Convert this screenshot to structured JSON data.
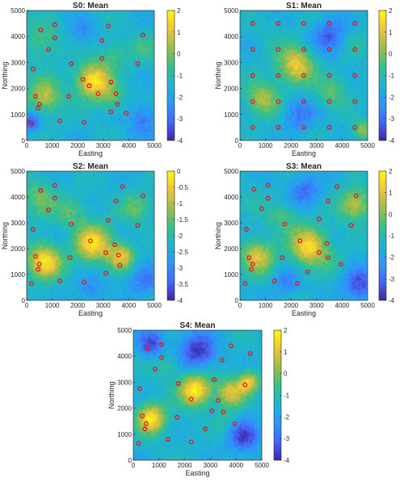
{
  "figure": {
    "panel_count": 5
  },
  "chart_data": [
    {
      "type": "heatmap",
      "title": "S0: Mean",
      "xlabel": "Easting",
      "ylabel": "Northing",
      "xlim": [
        0,
        5000
      ],
      "ylim": [
        0,
        5000
      ],
      "xticks": [
        "0",
        "1000",
        "2000",
        "3000",
        "4000",
        "5000"
      ],
      "yticks": [
        "0",
        "1000",
        "2000",
        "3000",
        "4000",
        "5000"
      ],
      "colorbar": {
        "min": -4,
        "max": 2,
        "ticks": [
          "2",
          "1",
          "0",
          "-1",
          "-2",
          "-3",
          "-4"
        ]
      },
      "colormap": [
        "#3e26a8",
        "#4667f8",
        "#2c97f9",
        "#1cb5d2",
        "#36c08a",
        "#9cbe48",
        "#f1c33d",
        "#f9fb0e"
      ],
      "points": [
        {
          "x": 550,
          "y": 4250
        },
        {
          "x": 1100,
          "y": 4450
        },
        {
          "x": 1100,
          "y": 3950
        },
        {
          "x": 850,
          "y": 3500
        },
        {
          "x": 3200,
          "y": 4400
        },
        {
          "x": 2950,
          "y": 3850
        },
        {
          "x": 4550,
          "y": 4050
        },
        {
          "x": 250,
          "y": 2750
        },
        {
          "x": 1750,
          "y": 2950
        },
        {
          "x": 2950,
          "y": 3150
        },
        {
          "x": 4350,
          "y": 2950
        },
        {
          "x": 2200,
          "y": 2350
        },
        {
          "x": 2450,
          "y": 2100
        },
        {
          "x": 3300,
          "y": 2250
        },
        {
          "x": 3500,
          "y": 1800
        },
        {
          "x": 350,
          "y": 1700
        },
        {
          "x": 500,
          "y": 1400
        },
        {
          "x": 450,
          "y": 1250
        },
        {
          "x": 1650,
          "y": 1700
        },
        {
          "x": 2800,
          "y": 1800
        },
        {
          "x": 3550,
          "y": 1400
        },
        {
          "x": 3300,
          "y": 1100
        },
        {
          "x": 3900,
          "y": 1050
        },
        {
          "x": 1300,
          "y": 750
        },
        {
          "x": 2250,
          "y": 700
        },
        {
          "x": 200,
          "y": 650
        }
      ],
      "hotspots": [
        {
          "x": 2600,
          "y": 2300,
          "v": 1.8,
          "r": 650
        },
        {
          "x": 700,
          "y": 1700,
          "v": 0.6,
          "r": 650
        },
        {
          "x": 3300,
          "y": 1650,
          "v": -0.3,
          "r": 500
        },
        {
          "x": 600,
          "y": 3800,
          "v": -0.4,
          "r": 700
        },
        {
          "x": 3400,
          "y": 3300,
          "v": -0.6,
          "r": 600
        },
        {
          "x": 4600,
          "y": 3500,
          "v": -0.8,
          "r": 600
        },
        {
          "x": 4600,
          "y": 800,
          "v": -2.8,
          "r": 600
        },
        {
          "x": 2200,
          "y": 4200,
          "v": -2.4,
          "r": 500
        },
        {
          "x": 150,
          "y": 700,
          "v": -3.5,
          "r": 350
        }
      ]
    },
    {
      "type": "heatmap",
      "title": "S1: Mean",
      "xlabel": "Easting",
      "ylabel": "Northing",
      "xlim": [
        0,
        5000
      ],
      "ylim": [
        0,
        5000
      ],
      "xticks": [
        "0",
        "1000",
        "2000",
        "3000",
        "4000",
        "5000"
      ],
      "yticks": [
        "0",
        "1000",
        "2000",
        "3000",
        "4000",
        "5000"
      ],
      "colorbar": {
        "min": -4,
        "max": 2,
        "ticks": [
          "2",
          "1",
          "0",
          "-1",
          "-2",
          "-3",
          "-4"
        ]
      },
      "colormap": [
        "#3e26a8",
        "#4667f8",
        "#2c97f9",
        "#1cb5d2",
        "#36c08a",
        "#9cbe48",
        "#f1c33d",
        "#f9fb0e"
      ],
      "points": [
        {
          "x": 500,
          "y": 4500
        },
        {
          "x": 1500,
          "y": 4500
        },
        {
          "x": 2500,
          "y": 4500
        },
        {
          "x": 3500,
          "y": 4500
        },
        {
          "x": 4500,
          "y": 4500
        },
        {
          "x": 500,
          "y": 3500
        },
        {
          "x": 1500,
          "y": 3500
        },
        {
          "x": 2500,
          "y": 3500
        },
        {
          "x": 3500,
          "y": 3500
        },
        {
          "x": 4500,
          "y": 3500
        },
        {
          "x": 500,
          "y": 2500
        },
        {
          "x": 1500,
          "y": 2500
        },
        {
          "x": 2500,
          "y": 2500
        },
        {
          "x": 3500,
          "y": 2500
        },
        {
          "x": 4500,
          "y": 2500
        },
        {
          "x": 500,
          "y": 1500
        },
        {
          "x": 1500,
          "y": 1500
        },
        {
          "x": 2500,
          "y": 1500
        },
        {
          "x": 3500,
          "y": 1500
        },
        {
          "x": 4500,
          "y": 1500
        },
        {
          "x": 500,
          "y": 500
        },
        {
          "x": 1500,
          "y": 500
        },
        {
          "x": 2500,
          "y": 500
        },
        {
          "x": 3500,
          "y": 500
        },
        {
          "x": 4500,
          "y": 500
        }
      ],
      "hotspots": [
        {
          "x": 2200,
          "y": 2900,
          "v": 1.2,
          "r": 700
        },
        {
          "x": 900,
          "y": 1600,
          "v": 0.5,
          "r": 650
        },
        {
          "x": 3600,
          "y": 1900,
          "v": -0.3,
          "r": 600
        },
        {
          "x": 4600,
          "y": 3700,
          "v": -0.9,
          "r": 500
        },
        {
          "x": 1200,
          "y": 4000,
          "v": -1.2,
          "r": 600
        },
        {
          "x": 4800,
          "y": 400,
          "v": 0.3,
          "r": 350
        },
        {
          "x": 3500,
          "y": 4000,
          "v": -3.2,
          "r": 650
        },
        {
          "x": 2300,
          "y": 1000,
          "v": -2.8,
          "r": 600
        }
      ]
    },
    {
      "type": "heatmap",
      "title": "S2: Mean",
      "xlabel": "Easting",
      "ylabel": "Northing",
      "xlim": [
        0,
        5000
      ],
      "ylim": [
        0,
        5000
      ],
      "xticks": [
        "0",
        "1000",
        "2000",
        "3000",
        "4000",
        "5000"
      ],
      "yticks": [
        "0",
        "1000",
        "2000",
        "3000",
        "4000",
        "5000"
      ],
      "colorbar": {
        "min": -4,
        "max": 0,
        "ticks": [
          "0",
          "-0.5",
          "-1",
          "-1.5",
          "-2",
          "-2.5",
          "-3",
          "-3.5",
          "-4"
        ]
      },
      "colormap": [
        "#3e26a8",
        "#4667f8",
        "#2c97f9",
        "#1cb5d2",
        "#36c08a",
        "#9cbe48",
        "#f1c33d",
        "#f9fb0e"
      ],
      "points": [
        {
          "x": 550,
          "y": 4250
        },
        {
          "x": 1100,
          "y": 4450
        },
        {
          "x": 1100,
          "y": 3950
        },
        {
          "x": 850,
          "y": 3500
        },
        {
          "x": 3750,
          "y": 4400
        },
        {
          "x": 3500,
          "y": 3850
        },
        {
          "x": 4550,
          "y": 4050
        },
        {
          "x": 250,
          "y": 2750
        },
        {
          "x": 1750,
          "y": 2950
        },
        {
          "x": 3200,
          "y": 3100
        },
        {
          "x": 4350,
          "y": 2900
        },
        {
          "x": 2500,
          "y": 2300
        },
        {
          "x": 3450,
          "y": 2150
        },
        {
          "x": 3100,
          "y": 1850
        },
        {
          "x": 3600,
          "y": 1750
        },
        {
          "x": 350,
          "y": 1700
        },
        {
          "x": 500,
          "y": 1400
        },
        {
          "x": 450,
          "y": 1200
        },
        {
          "x": 1700,
          "y": 1650
        },
        {
          "x": 3650,
          "y": 1350
        },
        {
          "x": 3100,
          "y": 1050
        },
        {
          "x": 1300,
          "y": 750
        },
        {
          "x": 2250,
          "y": 700
        },
        {
          "x": 200,
          "y": 650
        }
      ],
      "hotspots": [
        {
          "x": 2600,
          "y": 2200,
          "v": -0.3,
          "r": 700
        },
        {
          "x": 700,
          "y": 1500,
          "v": -0.2,
          "r": 650
        },
        {
          "x": 3700,
          "y": 1700,
          "v": -0.6,
          "r": 500
        },
        {
          "x": 500,
          "y": 3900,
          "v": -1.4,
          "r": 700
        },
        {
          "x": 4300,
          "y": 3600,
          "v": -1.5,
          "r": 600
        },
        {
          "x": 1800,
          "y": 3400,
          "v": -1.6,
          "r": 600
        },
        {
          "x": 4600,
          "y": 800,
          "v": -3.2,
          "r": 600
        },
        {
          "x": 2500,
          "y": 400,
          "v": -3.0,
          "r": 500
        }
      ]
    },
    {
      "type": "heatmap",
      "title": "S3: Mean",
      "xlabel": "Easting",
      "ylabel": "Northing",
      "xlim": [
        0,
        5000
      ],
      "ylim": [
        0,
        5000
      ],
      "xticks": [
        "0",
        "1000",
        "2000",
        "3000",
        "4000",
        "5000"
      ],
      "yticks": [
        "0",
        "1000",
        "2000",
        "3000",
        "4000",
        "5000"
      ],
      "colorbar": {
        "min": -4,
        "max": 2,
        "ticks": [
          "2",
          "1",
          "0",
          "-1",
          "-2",
          "-3",
          "-4"
        ]
      },
      "colormap": [
        "#3e26a8",
        "#4667f8",
        "#2c97f9",
        "#1cb5d2",
        "#36c08a",
        "#9cbe48",
        "#f1c33d",
        "#f9fb0e"
      ],
      "points": [
        {
          "x": 550,
          "y": 4300
        },
        {
          "x": 1100,
          "y": 4450
        },
        {
          "x": 1100,
          "y": 3950
        },
        {
          "x": 850,
          "y": 3550
        },
        {
          "x": 3800,
          "y": 4400
        },
        {
          "x": 3450,
          "y": 3850
        },
        {
          "x": 4550,
          "y": 4050
        },
        {
          "x": 250,
          "y": 2750
        },
        {
          "x": 1750,
          "y": 2950
        },
        {
          "x": 3100,
          "y": 3150
        },
        {
          "x": 4350,
          "y": 2900
        },
        {
          "x": 2350,
          "y": 2300
        },
        {
          "x": 3400,
          "y": 2200
        },
        {
          "x": 3100,
          "y": 1850
        },
        {
          "x": 3450,
          "y": 1650
        },
        {
          "x": 350,
          "y": 1650
        },
        {
          "x": 500,
          "y": 1400
        },
        {
          "x": 450,
          "y": 1200
        },
        {
          "x": 1650,
          "y": 1650
        },
        {
          "x": 3950,
          "y": 1400
        },
        {
          "x": 2650,
          "y": 1100
        },
        {
          "x": 1350,
          "y": 750
        },
        {
          "x": 2250,
          "y": 650
        },
        {
          "x": 200,
          "y": 650
        }
      ],
      "hotspots": [
        {
          "x": 2700,
          "y": 2100,
          "v": 1.6,
          "r": 700
        },
        {
          "x": 700,
          "y": 1700,
          "v": 0.9,
          "r": 650
        },
        {
          "x": 4500,
          "y": 3700,
          "v": 0.8,
          "r": 600
        },
        {
          "x": 1700,
          "y": 3200,
          "v": -0.4,
          "r": 600
        },
        {
          "x": 500,
          "y": 4000,
          "v": -1.2,
          "r": 600
        },
        {
          "x": 3600,
          "y": 1500,
          "v": -1.0,
          "r": 500
        },
        {
          "x": 4700,
          "y": 600,
          "v": -3.4,
          "r": 650
        },
        {
          "x": 2500,
          "y": 4200,
          "v": -3.0,
          "r": 600
        },
        {
          "x": 1800,
          "y": 700,
          "v": -2.6,
          "r": 500
        }
      ]
    },
    {
      "type": "heatmap",
      "title": "S4: Mean",
      "xlabel": "Easting",
      "ylabel": "Northing",
      "xlim": [
        0,
        5000
      ],
      "ylim": [
        0,
        5000
      ],
      "xticks": [
        "0",
        "1000",
        "2000",
        "3000",
        "4000",
        "5000"
      ],
      "yticks": [
        "0",
        "1000",
        "2000",
        "3000",
        "4000",
        "5000"
      ],
      "colorbar": {
        "min": -4,
        "max": 2,
        "ticks": [
          "2",
          "1",
          "0",
          "-1",
          "-2",
          "-3",
          "-4"
        ]
      },
      "colormap": [
        "#3e26a8",
        "#4667f8",
        "#2c97f9",
        "#1cb5d2",
        "#36c08a",
        "#9cbe48",
        "#f1c33d",
        "#f9fb0e"
      ],
      "points": [
        {
          "x": 550,
          "y": 4300
        },
        {
          "x": 1100,
          "y": 4450
        },
        {
          "x": 1100,
          "y": 3950
        },
        {
          "x": 850,
          "y": 3500
        },
        {
          "x": 3800,
          "y": 4400
        },
        {
          "x": 3450,
          "y": 3850
        },
        {
          "x": 4550,
          "y": 4100
        },
        {
          "x": 250,
          "y": 2750
        },
        {
          "x": 1750,
          "y": 2950
        },
        {
          "x": 3150,
          "y": 3100
        },
        {
          "x": 4350,
          "y": 2900
        },
        {
          "x": 2250,
          "y": 2350
        },
        {
          "x": 3300,
          "y": 2300
        },
        {
          "x": 3050,
          "y": 1900
        },
        {
          "x": 3500,
          "y": 1850
        },
        {
          "x": 350,
          "y": 1700
        },
        {
          "x": 500,
          "y": 1400
        },
        {
          "x": 450,
          "y": 1200
        },
        {
          "x": 1700,
          "y": 1650
        },
        {
          "x": 3950,
          "y": 1400
        },
        {
          "x": 2800,
          "y": 1200
        },
        {
          "x": 1350,
          "y": 800
        },
        {
          "x": 2250,
          "y": 700
        },
        {
          "x": 200,
          "y": 650
        }
      ],
      "hotspots": [
        {
          "x": 2400,
          "y": 2700,
          "v": 2.0,
          "r": 600
        },
        {
          "x": 700,
          "y": 1600,
          "v": 1.8,
          "r": 550
        },
        {
          "x": 3800,
          "y": 2600,
          "v": 0.9,
          "r": 550
        },
        {
          "x": 4500,
          "y": 3000,
          "v": 1.1,
          "r": 400
        },
        {
          "x": 1300,
          "y": 3600,
          "v": -0.6,
          "r": 500
        },
        {
          "x": 3600,
          "y": 1500,
          "v": -0.8,
          "r": 450
        },
        {
          "x": 2500,
          "y": 4200,
          "v": -3.8,
          "r": 700
        },
        {
          "x": 4300,
          "y": 900,
          "v": -3.6,
          "r": 600
        },
        {
          "x": 700,
          "y": 4500,
          "v": -3.5,
          "r": 500
        }
      ]
    }
  ]
}
